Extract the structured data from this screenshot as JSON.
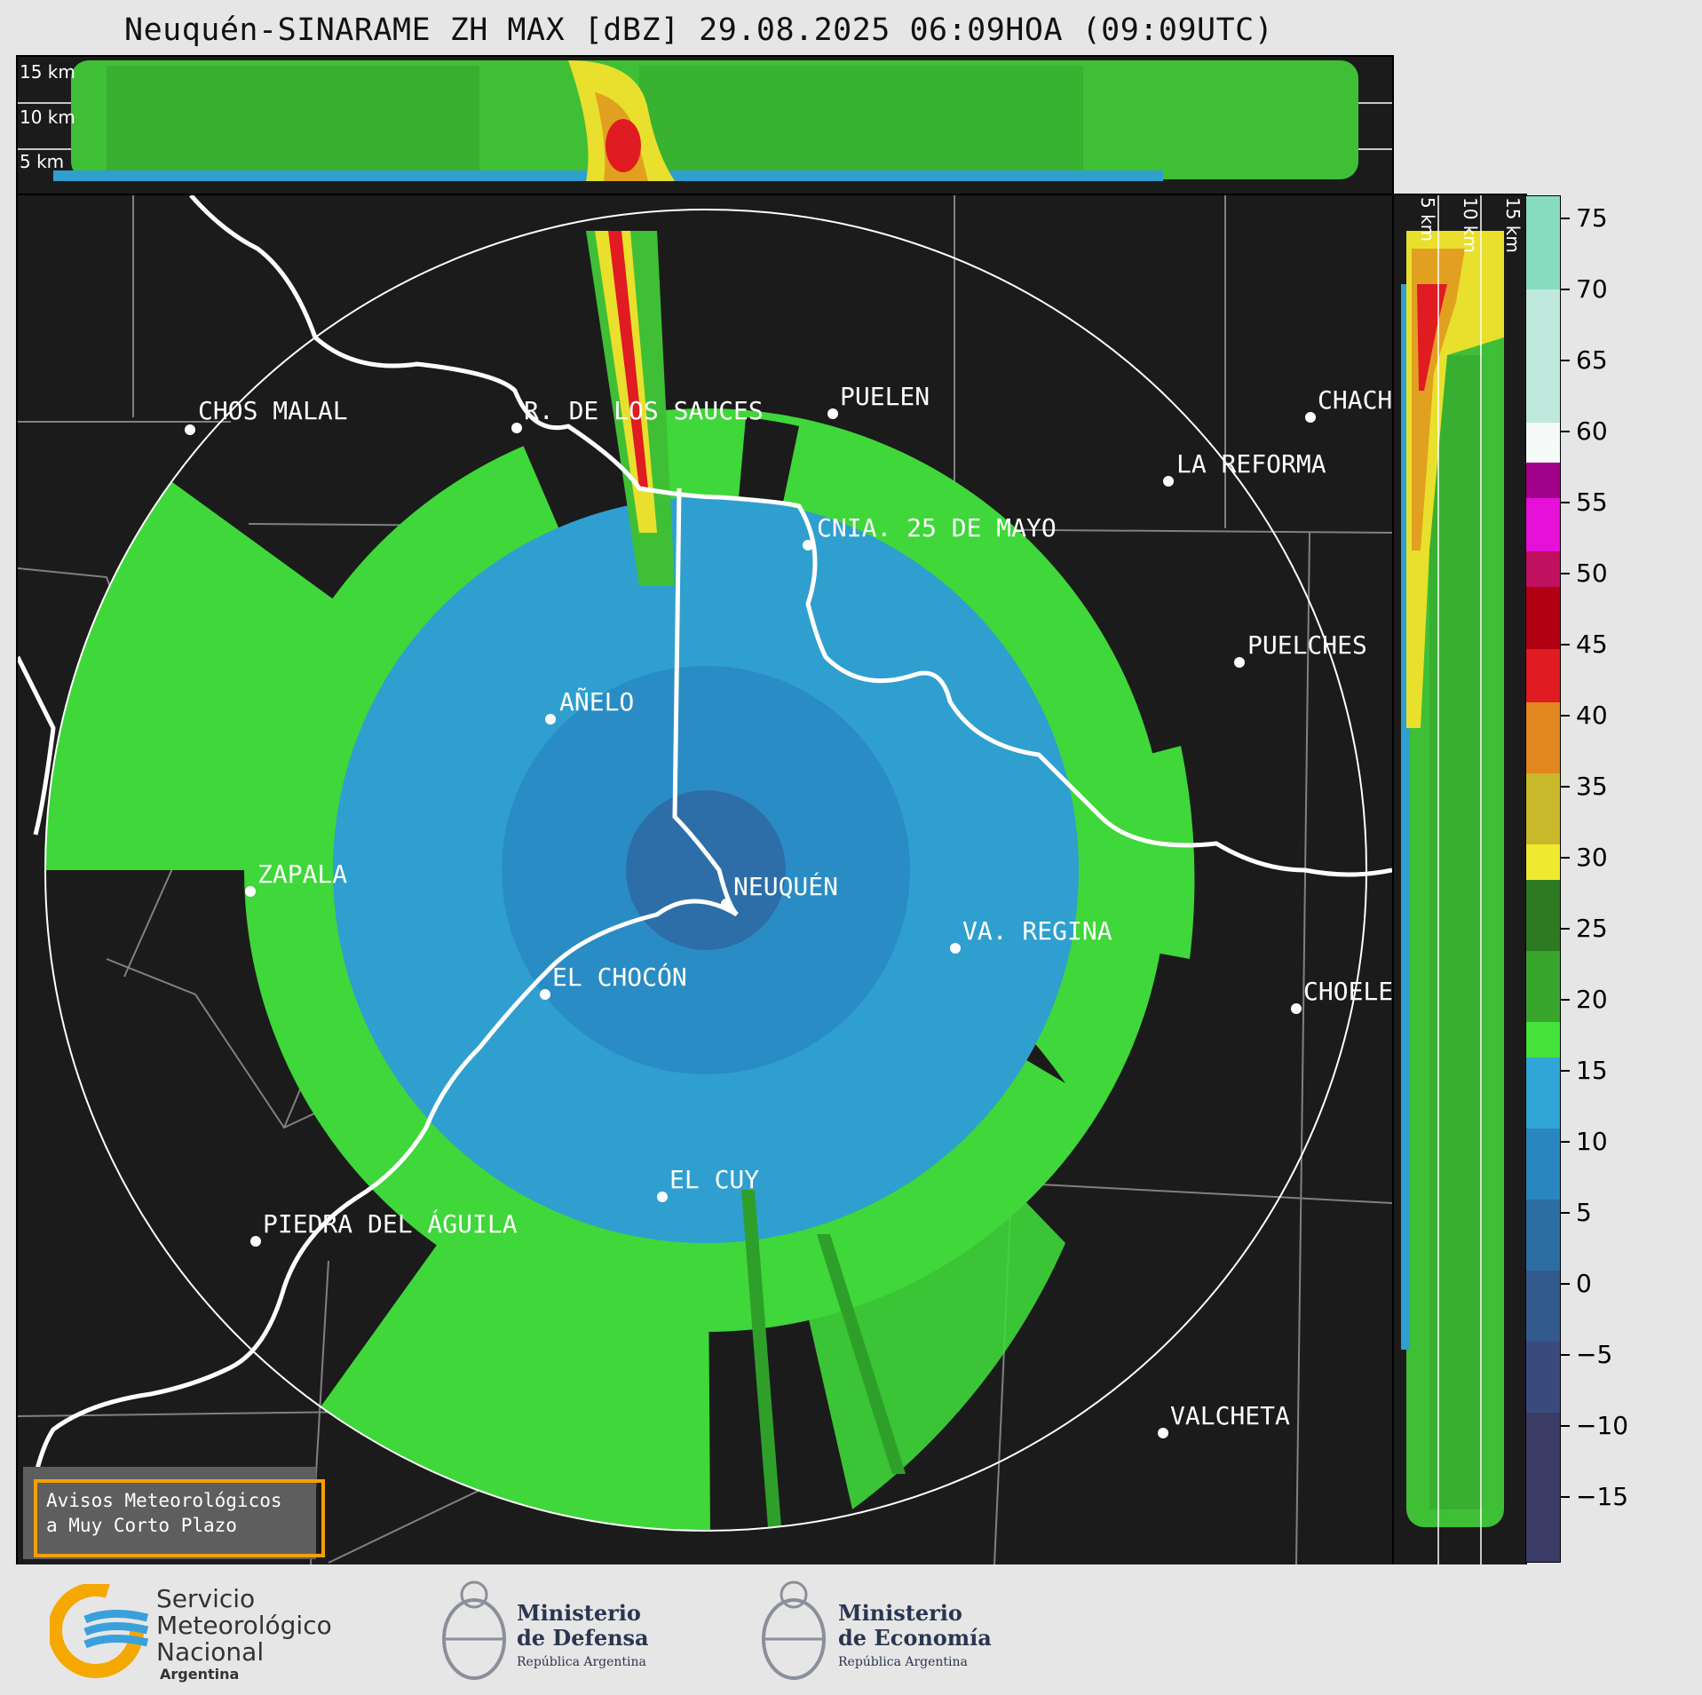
{
  "title": "Neuquén-SINARAME ZH MAX [dBZ] 29.08.2025 06:09HOA (09:09UTC)",
  "top_panel": {
    "height_labels": [
      "15 km",
      "10 km",
      "5 km"
    ]
  },
  "side_panel": {
    "height_labels": [
      "5 km",
      "10 km",
      "15 km"
    ]
  },
  "colorbar": {
    "unit": "dBZ",
    "ticks": [
      "75",
      "70",
      "65",
      "60",
      "55",
      "50",
      "45",
      "40",
      "35",
      "30",
      "25",
      "20",
      "15",
      "10",
      "5",
      "0",
      "−5",
      "−10",
      "−15"
    ]
  },
  "cities": [
    {
      "name": "CHOS MALAL"
    },
    {
      "name": "R. DE LOS SAUCES"
    },
    {
      "name": "PUELEN"
    },
    {
      "name": "CHACH"
    },
    {
      "name": "LA REFORMA"
    },
    {
      "name": "CNIA. 25 DE MAYO"
    },
    {
      "name": "PUELCHES"
    },
    {
      "name": "AÑELO"
    },
    {
      "name": "ZAPALA"
    },
    {
      "name": "NEUQUÉN"
    },
    {
      "name": "VA. REGINA"
    },
    {
      "name": "EL CHOCÓN"
    },
    {
      "name": "CHOELE"
    },
    {
      "name": "EL CUY"
    },
    {
      "name": "PIEDRA DEL ÁGUILA"
    },
    {
      "name": "VALCHETA"
    }
  ],
  "notice": {
    "line1": "Avisos Meteorológicos",
    "line2": "a Muy Corto Plazo"
  },
  "logos": {
    "smn": {
      "line1": "Servicio",
      "line2": "Meteorológico",
      "line3": "Nacional",
      "line4": "Argentina"
    },
    "defensa": {
      "line1": "Ministerio",
      "line2": "de Defensa",
      "line3": "República Argentina"
    },
    "economia": {
      "line1": "Ministerio",
      "line2": "de Economía",
      "line3": "República Argentina"
    }
  },
  "colors": {
    "background_panel": "#1b1b1b",
    "echo_green": "#3fd73a",
    "echo_blue": "#2f9fd0",
    "notice_border": "#f5a000",
    "smn_orange": "#f5a800",
    "smn_blue": "#3aa0db"
  }
}
